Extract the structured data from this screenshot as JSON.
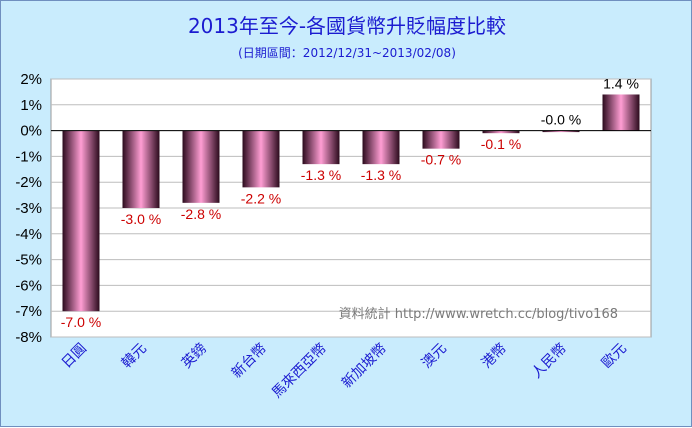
{
  "chart_data": {
    "type": "bar",
    "title": "2013年至今-各國貨幣升貶幅度比較",
    "subtitle": "(日期區間：2012/12/31~2013/02/08)",
    "categories": [
      "日圓",
      "韓元",
      "英鎊",
      "新台幣",
      "馬來西亞幣",
      "新加坡幣",
      "澳元",
      "港幣",
      "人民幣",
      "歐元"
    ],
    "values": [
      -7.0,
      -3.0,
      -2.8,
      -2.2,
      -1.3,
      -1.3,
      -0.7,
      -0.1,
      -0.0,
      1.4
    ],
    "data_labels": [
      "-7.0 %",
      "-3.0 %",
      "-2.8 %",
      "-2.2 %",
      "-1.3 %",
      "-1.3 %",
      "-0.7 %",
      "-0.1 %",
      "-0.0 %",
      "1.4 %"
    ],
    "ylim": [
      -8,
      2
    ],
    "yticks": [
      2,
      1,
      0,
      -1,
      -2,
      -3,
      -4,
      -5,
      -6,
      -7,
      -8
    ],
    "ytick_labels": [
      "2%",
      "1%",
      "0%",
      "-1%",
      "-2%",
      "-3%",
      "-4%",
      "-5%",
      "-6%",
      "-7%",
      "-8%"
    ],
    "grid": true,
    "legend": "none",
    "annotation": "資料統計 http://www.wretch.cc/blog/tivo168",
    "colors": {
      "bar_center": "#ff9ed4",
      "bar_edge": "#2b0a1c",
      "negative_label": "#cc0000",
      "positive_label": "#000000",
      "title": "#1b1bd0",
      "background": "#c9ecfd",
      "plot_background": "#ffffff"
    }
  }
}
